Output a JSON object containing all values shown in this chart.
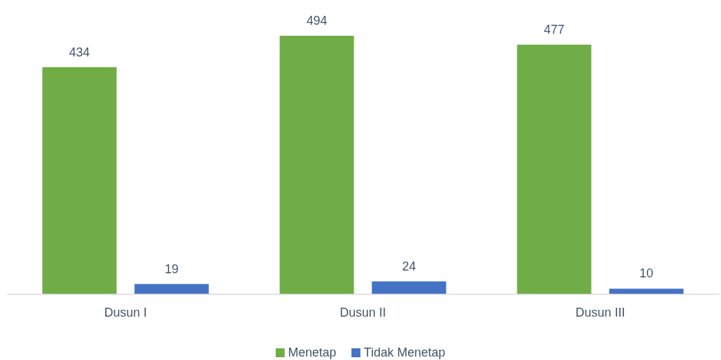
{
  "chart_data": {
    "type": "bar",
    "categories": [
      "Dusun I",
      "Dusun II",
      "Dusun III"
    ],
    "series": [
      {
        "name": "Menetap",
        "color": "#70ad47",
        "values": [
          434,
          494,
          477
        ]
      },
      {
        "name": "Tidak Menetap",
        "color": "#4472c4",
        "values": [
          19,
          24,
          10
        ]
      }
    ],
    "tick_labels": "x",
    "data_labels": true,
    "legend": "bottom"
  }
}
